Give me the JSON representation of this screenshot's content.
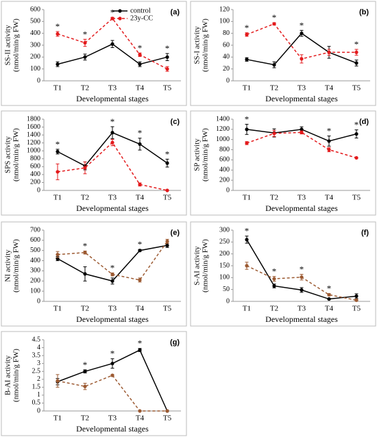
{
  "chart_data": [
    {
      "type": "line",
      "label": "(a)",
      "ylabel": [
        "SS-II activity",
        "(nmol/min/g FW)"
      ],
      "xlabel": "Developmental stages",
      "categories": [
        "T1",
        "T2",
        "T3",
        "T4",
        "T5"
      ],
      "ylim": [
        0,
        600
      ],
      "yticks": [
        0,
        100,
        200,
        300,
        400,
        500,
        600
      ],
      "legend": "top-center",
      "series": [
        {
          "name": "control",
          "color": "#000000",
          "dash": false,
          "values": [
            140,
            200,
            310,
            140,
            200
          ],
          "errors": [
            20,
            25,
            30,
            20,
            30
          ]
        },
        {
          "name": "23y-CC",
          "color": "#e31a1c",
          "dash": true,
          "values": [
            395,
            320,
            525,
            220,
            100
          ],
          "errors": [
            20,
            30,
            10,
            15,
            20
          ]
        }
      ],
      "annotations": [
        {
          "category": "T1",
          "text": "*"
        },
        {
          "category": "T2",
          "text": "*"
        },
        {
          "category": "T3",
          "text": "*"
        },
        {
          "category": "T4",
          "text": "*"
        },
        {
          "category": "T5",
          "text": "*"
        }
      ]
    },
    {
      "type": "line",
      "label": "(b)",
      "ylabel": [
        "SS-I activity",
        "(nmol/min/g FW)"
      ],
      "xlabel": "Developmental stages",
      "categories": [
        "T1",
        "T2",
        "T3",
        "T4",
        "T5"
      ],
      "ylim": [
        0,
        120
      ],
      "yticks": [
        0,
        20,
        40,
        60,
        80,
        100,
        120
      ],
      "series": [
        {
          "color": "#000000",
          "dash": false,
          "values": [
            36,
            27,
            80,
            48,
            30
          ],
          "errors": [
            3,
            5,
            5,
            10,
            5
          ]
        },
        {
          "color": "#e31a1c",
          "dash": true,
          "values": [
            78,
            96,
            37,
            48,
            48
          ],
          "errors": [
            3,
            2,
            7,
            5,
            5
          ]
        }
      ],
      "annotations": [
        {
          "category": "T1",
          "text": "*"
        },
        {
          "category": "T2",
          "text": "*"
        },
        {
          "category": "T3",
          "text": "*"
        },
        {
          "category": "T5",
          "text": "*"
        }
      ]
    },
    {
      "type": "line",
      "label": "(c)",
      "ylabel": [
        "SPS activity",
        "(nmol/min/g FW)"
      ],
      "xlabel": "Developmental stages",
      "categories": [
        "T1",
        "T2",
        "T3",
        "T4",
        "T5"
      ],
      "ylim": [
        0,
        1800
      ],
      "yticks": [
        0,
        200,
        400,
        600,
        800,
        1000,
        1200,
        1400,
        1600,
        1800
      ],
      "series": [
        {
          "color": "#000000",
          "dash": false,
          "values": [
            980,
            620,
            1460,
            1170,
            690
          ],
          "errors": [
            60,
            100,
            150,
            150,
            100
          ]
        },
        {
          "color": "#e31a1c",
          "dash": true,
          "values": [
            470,
            570,
            1210,
            150,
            0
          ],
          "errors": [
            200,
            150,
            80,
            40,
            0
          ]
        }
      ],
      "annotations": [
        {
          "category": "T1",
          "text": "*"
        },
        {
          "category": "T3",
          "text": "*"
        },
        {
          "category": "T4",
          "text": "*"
        },
        {
          "category": "T5",
          "text": "*"
        }
      ]
    },
    {
      "type": "line",
      "label": "(d)",
      "ylabel": [
        "SP activity",
        "(nmol/min/g FW)"
      ],
      "xlabel": "Developmental stages",
      "categories": [
        "T1",
        "T2",
        "T3",
        "T4",
        "T5"
      ],
      "ylim": [
        0,
        1400
      ],
      "yticks": [
        0,
        200,
        400,
        600,
        800,
        1000,
        1200,
        1400
      ],
      "series": [
        {
          "color": "#000000",
          "dash": false,
          "values": [
            1200,
            1130,
            1200,
            970,
            1110
          ],
          "errors": [
            100,
            80,
            50,
            100,
            80
          ]
        },
        {
          "color": "#e31a1c",
          "dash": true,
          "values": [
            930,
            1120,
            1140,
            800,
            640
          ],
          "errors": [
            30,
            60,
            30,
            40,
            10
          ]
        }
      ],
      "annotations": [
        {
          "category": "T1",
          "text": "*"
        },
        {
          "category": "T4",
          "text": "*"
        },
        {
          "category": "T5",
          "text": "*"
        }
      ]
    },
    {
      "type": "line",
      "label": "(e)",
      "ylabel": [
        "NI activity",
        "(nmol/min/g FW)"
      ],
      "xlabel": "Developmental stages",
      "categories": [
        "T1",
        "T2",
        "T3",
        "T4",
        "T5"
      ],
      "ylim": [
        0,
        700
      ],
      "yticks": [
        0,
        100,
        200,
        300,
        400,
        500,
        600,
        700
      ],
      "series": [
        {
          "color": "#000000",
          "dash": false,
          "values": [
            420,
            270,
            200,
            500,
            550
          ],
          "errors": [
            20,
            70,
            30,
            10,
            20
          ]
        },
        {
          "color": "#9c5a32",
          "dash": true,
          "values": [
            460,
            480,
            265,
            210,
            590
          ],
          "errors": [
            30,
            15,
            15,
            20,
            20
          ]
        }
      ],
      "annotations": [
        {
          "category": "T2",
          "text": "*"
        },
        {
          "category": "T3",
          "text": "*"
        },
        {
          "category": "T4",
          "text": "*"
        }
      ]
    },
    {
      "type": "line",
      "label": "(f)",
      "ylabel": [
        "S-AI activity",
        "(nmol/min/g FW)"
      ],
      "xlabel": "Developmental stages",
      "categories": [
        "T1",
        "T2",
        "T3",
        "T4",
        "T5"
      ],
      "ylim": [
        0,
        300
      ],
      "yticks": [
        0,
        50,
        100,
        150,
        200,
        250,
        300
      ],
      "series": [
        {
          "color": "#000000",
          "dash": false,
          "values": [
            260,
            65,
            48,
            10,
            22
          ],
          "errors": [
            15,
            8,
            10,
            3,
            10
          ]
        },
        {
          "color": "#9c5a32",
          "dash": true,
          "values": [
            150,
            95,
            102,
            28,
            5
          ],
          "errors": [
            15,
            10,
            12,
            5,
            3
          ]
        }
      ],
      "annotations": [
        {
          "category": "T1",
          "text": "*"
        },
        {
          "category": "T2",
          "text": "*"
        },
        {
          "category": "T3",
          "text": "*"
        },
        {
          "category": "T4",
          "text": "*"
        }
      ]
    },
    {
      "type": "line",
      "label": "(g)",
      "ylabel": [
        "B-AI activity",
        "(nmol/min/g FW)"
      ],
      "xlabel": "Developmental stages",
      "categories": [
        "T1",
        "T2",
        "T3",
        "T4",
        "T5"
      ],
      "ylim": [
        0,
        4.5
      ],
      "yticks": [
        0,
        0.5,
        1,
        1.5,
        2,
        2.5,
        3,
        3.5,
        4,
        4.5
      ],
      "series": [
        {
          "color": "#000000",
          "dash": false,
          "values": [
            1.85,
            2.5,
            3.0,
            3.85,
            0
          ],
          "errors": [
            0.2,
            0.1,
            0.3,
            0.1,
            0
          ]
        },
        {
          "color": "#9c5a32",
          "dash": true,
          "values": [
            1.9,
            1.55,
            2.25,
            0,
            0
          ],
          "errors": [
            0.4,
            0.2,
            0.05,
            0,
            0
          ]
        }
      ],
      "annotations": [
        {
          "category": "T2",
          "text": "*"
        },
        {
          "category": "T3",
          "text": "*"
        },
        {
          "category": "T4",
          "text": "*"
        }
      ]
    }
  ]
}
